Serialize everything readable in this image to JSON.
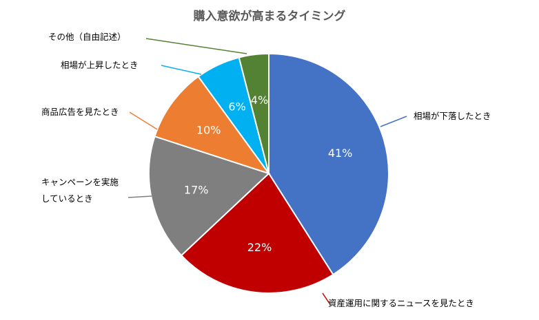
{
  "chart_data": {
    "type": "pie",
    "title": "購入意欲が高まるタイミング",
    "slices": [
      {
        "label": "相場が下落したとき",
        "value": 41,
        "value_label": "41%",
        "color": "#4472C4"
      },
      {
        "label": "資産運用に関するニュースを見たとき",
        "value": 22,
        "value_label": "22%",
        "color": "#C00000"
      },
      {
        "label": [
          "キャンペーンを実施",
          "しているとき"
        ],
        "value": 17,
        "value_label": "17%",
        "color": "#7F7F7F"
      },
      {
        "label": "商品広告を見たとき",
        "value": 10,
        "value_label": "10%",
        "color": "#ED7D31"
      },
      {
        "label": "相場が上昇したとき",
        "value": 6,
        "value_label": "6%",
        "color": "#00B0F0"
      },
      {
        "label": "その他（自由記述）",
        "value": 4,
        "value_label": "4%",
        "color": "#548235"
      }
    ]
  }
}
